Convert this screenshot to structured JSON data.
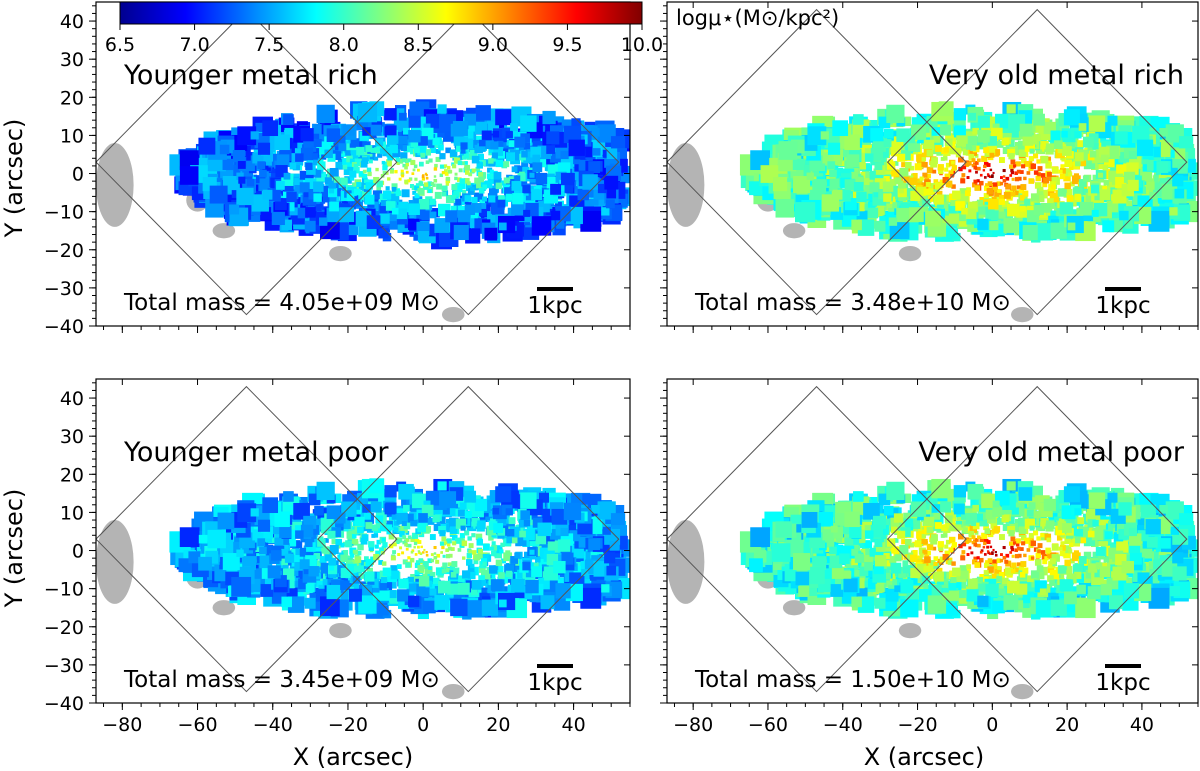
{
  "chart_data": {
    "type": "heatmap",
    "description_colormap": "jet",
    "xlabel": "X (arcsec)",
    "ylabel": "Y (arcsec)",
    "xlim": [
      -87,
      55
    ],
    "ylim": [
      -40,
      45
    ],
    "xticks": [
      "−80",
      "−60",
      "−40",
      "−20",
      "0",
      "20",
      "40"
    ],
    "xtick_values": [
      -80,
      -60,
      -40,
      -20,
      0,
      20,
      40
    ],
    "yticks": [
      "40",
      "30",
      "20",
      "10",
      "0",
      "−10",
      "−20",
      "−30",
      "−40"
    ],
    "ytick_values": [
      40,
      30,
      20,
      10,
      0,
      -10,
      -20,
      -30,
      -40
    ],
    "colorbar": {
      "title": "logμ⋆(M⊙/kpc²)",
      "range": [
        6.5,
        10.0
      ],
      "ticks": [
        "6.5",
        "7.0",
        "7.5",
        "8.0",
        "8.5",
        "9.0",
        "9.5",
        "10.0"
      ],
      "tick_values": [
        6.5,
        7.0,
        7.5,
        8.0,
        8.5,
        9.0,
        9.5,
        10.0
      ],
      "colors": [
        "#00008f",
        "#0000ff",
        "#0080ff",
        "#00ffff",
        "#80ff80",
        "#ffff00",
        "#ff8000",
        "#ff0000",
        "#800000"
      ]
    },
    "scalebar_label": "1kpc",
    "panels": [
      {
        "id": "younger-metal-rich",
        "title": "Younger metal rich",
        "total_mass": "Total mass = 4.05e+09 M⊙",
        "title_pos": "top-left",
        "peak_logmu": 8.9,
        "outer_logmu": 7.2
      },
      {
        "id": "very-old-metal-rich",
        "title": "Very old metal rich",
        "total_mass": "Total mass = 3.48e+10 M⊙",
        "title_pos": "top-right",
        "peak_logmu": 10.0,
        "outer_logmu": 7.9
      },
      {
        "id": "younger-metal-poor",
        "title": "Younger metal poor",
        "total_mass": "Total mass = 3.45e+09 M⊙",
        "title_pos": "top-left",
        "peak_logmu": 8.8,
        "outer_logmu": 7.4
      },
      {
        "id": "very-old-metal-poor",
        "title": "Very old metal poor",
        "total_mass": "Total mass = 1.50e+10 M⊙",
        "title_pos": "top-right",
        "peak_logmu": 9.9,
        "outer_logmu": 7.8
      }
    ]
  }
}
